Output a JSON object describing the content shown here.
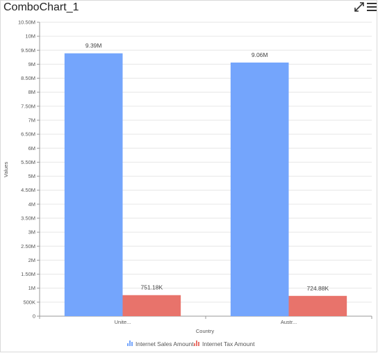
{
  "widget": {
    "title": "ComboChart_1",
    "maximize_icon": "expand-arrows-icon",
    "menu_icon": "hamburger-menu-icon"
  },
  "chart_data": {
    "type": "bar",
    "categories": [
      "Unite...",
      "Austr..."
    ],
    "series": [
      {
        "name": "Internet Sales Amount",
        "values": [
          9390000,
          9060000
        ],
        "labels": [
          "9.39M",
          "9.06M"
        ],
        "color": "#74a5fc"
      },
      {
        "name": "Internet Tax Amount",
        "values": [
          751180,
          724880
        ],
        "labels": [
          "751.18K",
          "724.88K"
        ],
        "color": "#e8736b"
      }
    ],
    "xlabel": "Country",
    "ylabel": "Values",
    "ylim": [
      0,
      10500000
    ],
    "yticks": [
      0,
      500000,
      1000000,
      1500000,
      2000000,
      2500000,
      3000000,
      3500000,
      4000000,
      4500000,
      5000000,
      5500000,
      6000000,
      6500000,
      7000000,
      7500000,
      8000000,
      8500000,
      9000000,
      9500000,
      10000000,
      10500000
    ],
    "ytick_labels": [
      "0",
      "500K",
      "1M",
      "1.50M",
      "2M",
      "2.50M",
      "3M",
      "3.50M",
      "4M",
      "4.50M",
      "5M",
      "5.50M",
      "6M",
      "6.50M",
      "7M",
      "7.50M",
      "8M",
      "8.50M",
      "9M",
      "9.50M",
      "10M",
      "10.50M"
    ],
    "grid": true,
    "legend_position": "bottom-center"
  }
}
